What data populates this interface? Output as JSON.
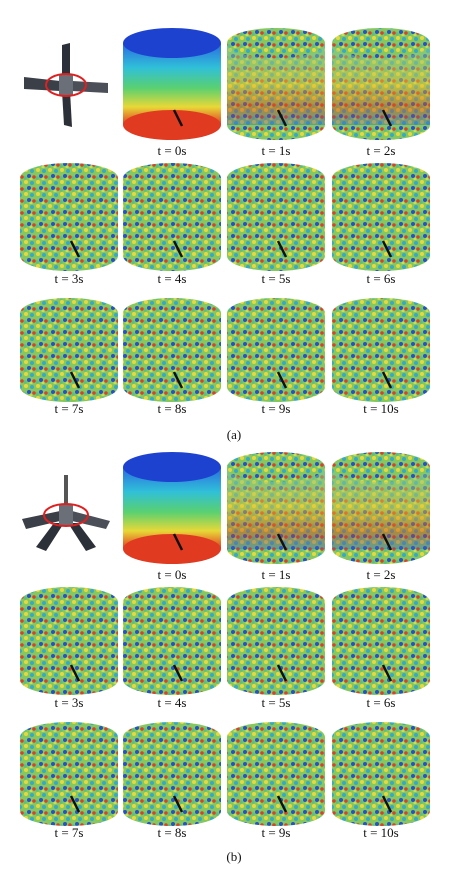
{
  "panels": [
    {
      "label": "(a)",
      "frames": [
        "t = 0s",
        "t = 1s",
        "t = 2s",
        "t = 3s",
        "t = 4s",
        "t = 5s",
        "t = 6s",
        "t = 7s",
        "t = 8s",
        "t = 9s",
        "t = 10s"
      ]
    },
    {
      "label": "(b)",
      "frames": [
        "t = 0s",
        "t = 1s",
        "t = 2s",
        "t = 3s",
        "t = 4s",
        "t = 5s",
        "t = 6s",
        "t = 7s",
        "t = 8s",
        "t = 9s",
        "t = 10s"
      ]
    }
  ]
}
